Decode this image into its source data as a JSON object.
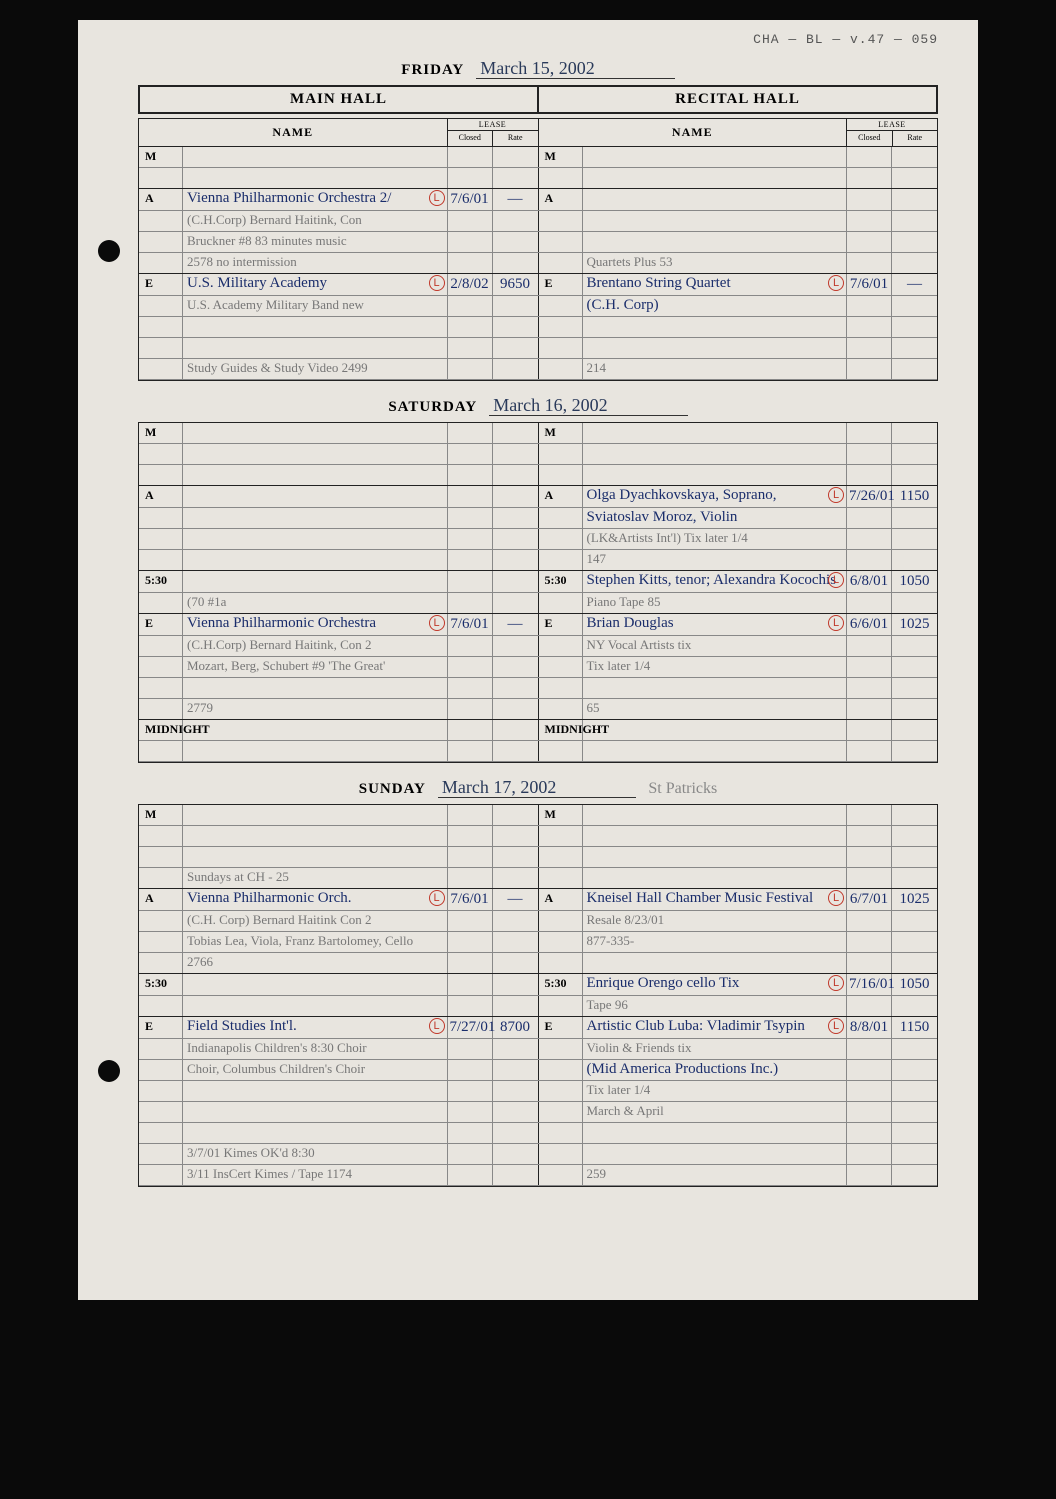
{
  "archive_ref": "CHA — BL — v.47 — 059",
  "hall_labels": {
    "main": "MAIN HALL",
    "recital": "RECITAL HALL"
  },
  "col_labels": {
    "name": "NAME",
    "lease": "LEASE",
    "closed": "Closed",
    "rate": "Rate"
  },
  "days": [
    {
      "label": "FRIDAY",
      "date": "March 15, 2002",
      "note": "",
      "sections": [
        {
          "slot": "M",
          "rows": [
            {
              "main": {
                "name": "",
                "closed": "",
                "rate": ""
              },
              "recital": {
                "name": "",
                "closed": "",
                "rate": ""
              }
            },
            {
              "main": {
                "name": "",
                "closed": "",
                "rate": ""
              },
              "recital": {
                "name": "",
                "closed": "",
                "rate": ""
              }
            }
          ]
        },
        {
          "slot": "A",
          "rows": [
            {
              "main": {
                "name": "Vienna Philharmonic Orchestra  2/",
                "closed": "7/6/01",
                "rate": "—",
                "mark": "L",
                "blue": true
              },
              "recital": {
                "name": "",
                "closed": "",
                "rate": ""
              }
            },
            {
              "main": {
                "name": "(C.H.Corp) Bernard Haitink, Con",
                "closed": "",
                "rate": "",
                "pencil": true
              },
              "recital": {
                "name": "",
                "closed": "",
                "rate": ""
              }
            },
            {
              "main": {
                "name": "Bruckner #8            83 minutes music",
                "closed": "",
                "rate": "",
                "pencil": true
              },
              "recital": {
                "name": "",
                "closed": "",
                "rate": ""
              }
            },
            {
              "main": {
                "name": "                2578    no intermission",
                "closed": "",
                "rate": "",
                "pencil": true
              },
              "recital": {
                "name": "Quartets Plus 53",
                "closed": "",
                "rate": "",
                "pencil": true
              }
            }
          ]
        },
        {
          "slot": "E",
          "rows": [
            {
              "main": {
                "name": "U.S. Military Academy",
                "closed": "2/8/02",
                "rate": "9650",
                "mark": "L",
                "blue": true
              },
              "recital": {
                "name": "Brentano String Quartet",
                "closed": "7/6/01",
                "rate": "—",
                "mark": "L",
                "blue": true
              }
            },
            {
              "main": {
                "name": "U.S. Academy Military Band    new",
                "closed": "",
                "rate": "",
                "pencil": true
              },
              "recital": {
                "name": "(C.H. Corp)",
                "closed": "",
                "rate": "",
                "blue": true
              }
            },
            {
              "main": {
                "name": "",
                "closed": "",
                "rate": ""
              },
              "recital": {
                "name": "",
                "closed": "",
                "rate": ""
              }
            },
            {
              "main": {
                "name": "",
                "closed": "",
                "rate": ""
              },
              "recital": {
                "name": "",
                "closed": "",
                "rate": ""
              }
            },
            {
              "main": {
                "name": "Study Guides & Study Video   2499",
                "closed": "",
                "rate": "",
                "pencil": true
              },
              "recital": {
                "name": "          214",
                "closed": "",
                "rate": "",
                "pencil": true
              }
            }
          ]
        }
      ]
    },
    {
      "label": "SATURDAY",
      "date": "March 16, 2002",
      "note": "",
      "sections": [
        {
          "slot": "M",
          "rows": [
            {
              "main": {
                "name": "",
                "closed": "",
                "rate": ""
              },
              "recital": {
                "name": "",
                "closed": "",
                "rate": ""
              }
            },
            {
              "main": {
                "name": "",
                "closed": "",
                "rate": ""
              },
              "recital": {
                "name": "",
                "closed": "",
                "rate": ""
              }
            },
            {
              "main": {
                "name": "",
                "closed": "",
                "rate": ""
              },
              "recital": {
                "name": "",
                "closed": "",
                "rate": ""
              }
            }
          ]
        },
        {
          "slot": "A",
          "rows": [
            {
              "main": {
                "name": "",
                "closed": "",
                "rate": ""
              },
              "recital": {
                "name": "Olga Dyachkovskaya, Soprano,",
                "closed": "7/26/01",
                "rate": "1150",
                "mark": "L",
                "blue": true
              }
            },
            {
              "main": {
                "name": "",
                "closed": "",
                "rate": ""
              },
              "recital": {
                "name": "Sviatoslav Moroz, Violin",
                "closed": "",
                "rate": "",
                "blue": true
              }
            },
            {
              "main": {
                "name": "",
                "closed": "",
                "rate": ""
              },
              "recital": {
                "name": "(LK&Artists Int'l)      Tix later 1/4",
                "closed": "",
                "rate": "",
                "pencil": true
              }
            },
            {
              "main": {
                "name": "",
                "closed": "",
                "rate": ""
              },
              "recital": {
                "name": "                       147",
                "closed": "",
                "rate": "",
                "pencil": true
              }
            }
          ]
        },
        {
          "slot": "5:30",
          "rows": [
            {
              "main": {
                "name": "",
                "closed": "",
                "rate": ""
              },
              "recital": {
                "name": "Stephen Kitts, tenor; Alexandra Kocochis",
                "closed": "6/8/01",
                "rate": "1050",
                "mark": "L",
                "blue": true
              }
            },
            {
              "main": {
                "name": "(70 #1a",
                "closed": "",
                "rate": "",
                "pencil": true
              },
              "recital": {
                "name": "Piano               Tape 85",
                "closed": "",
                "rate": "",
                "pencil": true
              }
            }
          ]
        },
        {
          "slot": "E",
          "rows": [
            {
              "main": {
                "name": "Vienna Philharmonic Orchestra",
                "closed": "7/6/01",
                "rate": "—",
                "mark": "L",
                "blue": true
              },
              "recital": {
                "name": "Brian Douglas",
                "closed": "6/6/01",
                "rate": "1025",
                "mark": "L",
                "blue": true
              }
            },
            {
              "main": {
                "name": "(C.H.Corp) Bernard Haitink, Con 2",
                "closed": "",
                "rate": "",
                "pencil": true
              },
              "recital": {
                "name": "NY Vocal Artists       tix",
                "closed": "",
                "rate": "",
                "pencil": true
              }
            },
            {
              "main": {
                "name": "Mozart, Berg, Schubert #9 'The Great'",
                "closed": "",
                "rate": "",
                "pencil": true
              },
              "recital": {
                "name": "                  Tix later 1/4",
                "closed": "",
                "rate": "",
                "pencil": true
              }
            },
            {
              "main": {
                "name": "",
                "closed": "",
                "rate": ""
              },
              "recital": {
                "name": "",
                "closed": "",
                "rate": ""
              }
            },
            {
              "main": {
                "name": "                    2779",
                "closed": "",
                "rate": "",
                "pencil": true
              },
              "recital": {
                "name": "             65",
                "closed": "",
                "rate": "",
                "pencil": true
              }
            }
          ]
        },
        {
          "slot": "MIDNIGHT",
          "rows": [
            {
              "main": {
                "name": "",
                "closed": "",
                "rate": ""
              },
              "recital": {
                "name": "",
                "closed": "",
                "rate": ""
              }
            },
            {
              "main": {
                "name": "",
                "closed": "",
                "rate": ""
              },
              "recital": {
                "name": "",
                "closed": "",
                "rate": ""
              }
            }
          ]
        }
      ]
    },
    {
      "label": "SUNDAY",
      "date": "March 17, 2002",
      "note": "St Patricks",
      "sections": [
        {
          "slot": "M",
          "rows": [
            {
              "main": {
                "name": "",
                "closed": "",
                "rate": ""
              },
              "recital": {
                "name": "",
                "closed": "",
                "rate": ""
              }
            },
            {
              "main": {
                "name": "",
                "closed": "",
                "rate": ""
              },
              "recital": {
                "name": "",
                "closed": "",
                "rate": ""
              }
            },
            {
              "main": {
                "name": "",
                "closed": "",
                "rate": ""
              },
              "recital": {
                "name": "",
                "closed": "",
                "rate": ""
              }
            },
            {
              "main": {
                "name": "Sundays at CH - 25",
                "closed": "",
                "rate": "",
                "pencil": true
              },
              "recital": {
                "name": "",
                "closed": "",
                "rate": ""
              }
            }
          ]
        },
        {
          "slot": "A",
          "rows": [
            {
              "main": {
                "name": "Vienna Philharmonic Orch.",
                "closed": "7/6/01",
                "rate": "—",
                "mark": "L",
                "blue": true
              },
              "recital": {
                "name": "Kneisel Hall Chamber Music Festival",
                "closed": "6/7/01",
                "rate": "1025",
                "mark": "L",
                "blue": true
              }
            },
            {
              "main": {
                "name": "(C.H. Corp) Bernard Haitink Con 2",
                "closed": "",
                "rate": "",
                "pencil": true
              },
              "recital": {
                "name": "                  Resale 8/23/01",
                "closed": "",
                "rate": "",
                "pencil": true
              }
            },
            {
              "main": {
                "name": "Tobias Lea, Viola, Franz Bartolomey, Cello",
                "closed": "",
                "rate": "",
                "pencil": true
              },
              "recital": {
                "name": "          877-335-",
                "closed": "",
                "rate": "",
                "pencil": true
              }
            },
            {
              "main": {
                "name": "                   2766",
                "closed": "",
                "rate": "",
                "pencil": true
              },
              "recital": {
                "name": "",
                "closed": "",
                "rate": ""
              }
            }
          ]
        },
        {
          "slot": "5:30",
          "rows": [
            {
              "main": {
                "name": "",
                "closed": "",
                "rate": ""
              },
              "recital": {
                "name": "Enrique Orengo cello    Tix",
                "closed": "7/16/01",
                "rate": "1050",
                "mark": "L",
                "blue": true
              }
            },
            {
              "main": {
                "name": "",
                "closed": "",
                "rate": ""
              },
              "recital": {
                "name": "               Tape 96",
                "closed": "",
                "rate": "",
                "pencil": true
              }
            }
          ]
        },
        {
          "slot": "E",
          "rows": [
            {
              "main": {
                "name": "Field Studies Int'l.",
                "closed": "7/27/01",
                "rate": "8700",
                "mark": "L",
                "blue": true
              },
              "recital": {
                "name": "Artistic Club Luba: Vladimir Tsypin",
                "closed": "8/8/01",
                "rate": "1150",
                "mark": "L",
                "blue": true
              }
            },
            {
              "main": {
                "name": "Indianapolis Children's  8:30  Choir",
                "closed": "",
                "rate": "",
                "pencil": true
              },
              "recital": {
                "name": "Violin & Friends       tix",
                "closed": "",
                "rate": "",
                "pencil": true
              }
            },
            {
              "main": {
                "name": "Choir, Columbus Children's Choir",
                "closed": "",
                "rate": "",
                "pencil": true
              },
              "recital": {
                "name": "(Mid America Productions Inc.)",
                "closed": "",
                "rate": "",
                "blue": true
              }
            },
            {
              "main": {
                "name": "",
                "closed": "",
                "rate": ""
              },
              "recital": {
                "name": "              Tix later 1/4",
                "closed": "",
                "rate": "",
                "pencil": true
              }
            },
            {
              "main": {
                "name": "",
                "closed": "",
                "rate": ""
              },
              "recital": {
                "name": "           March & April",
                "closed": "",
                "rate": "",
                "pencil": true
              }
            },
            {
              "main": {
                "name": "",
                "closed": "",
                "rate": ""
              },
              "recital": {
                "name": "",
                "closed": "",
                "rate": ""
              }
            },
            {
              "main": {
                "name": "3/7/01 Kimes OK'd 8:30",
                "closed": "",
                "rate": "",
                "pencil": true
              },
              "recital": {
                "name": "",
                "closed": "",
                "rate": ""
              }
            },
            {
              "main": {
                "name": "3/11 InsCert Kimes / Tape 1174",
                "closed": "",
                "rate": "",
                "pencil": true
              },
              "recital": {
                "name": "                     259",
                "closed": "",
                "rate": "",
                "pencil": true
              }
            }
          ]
        }
      ]
    }
  ]
}
